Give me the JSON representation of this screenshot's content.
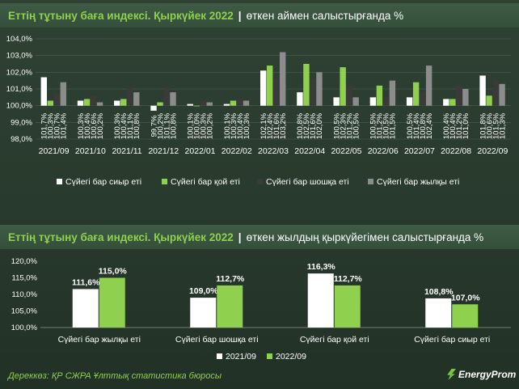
{
  "chart1": {
    "title_a": "Еттің тұтыну баға индексі. Қыркүйек 2022",
    "separator": "|",
    "title_b": "өткен аймен салыстырғанда %"
  },
  "chart2": {
    "title_a": "Еттің тұтыну баға индексі. Қыркүйек 2022",
    "separator": "|",
    "title_b": "өткен жылдың қыркүйегімен салыстырғанда %"
  },
  "source": "Дереккөз: ҚР СЖРА Ұлттық статистика бюросы",
  "logo_text": "EnergyProm",
  "colors": {
    "beef": "#ffffff",
    "lamb": "#8fd14f",
    "pork": "#3a3a3a",
    "horse": "#8c8c8c",
    "y2021": "#ffffff",
    "y2022": "#8fd14f"
  },
  "chart_data": [
    {
      "type": "bar",
      "categories": [
        "2021/09",
        "2021/10",
        "2021/11",
        "2021/12",
        "2022/01",
        "2022/02",
        "2022/03",
        "2022/04",
        "2022/05",
        "2022/06",
        "2022/07",
        "2022/08",
        "2022/09"
      ],
      "ylim": [
        98,
        104
      ],
      "yticks": [
        "98,0%",
        "99,0%",
        "100,0%",
        "101,0%",
        "102,0%",
        "103,0%",
        "104,0%"
      ],
      "legend_position": "bottom",
      "series": [
        {
          "name": "Сүйегі бар сиыр еті",
          "values": [
            101.7,
            100.3,
            100.3,
            99.7,
            100.1,
            100.1,
            102.1,
            100.8,
            100.5,
            100.5,
            100.5,
            100.4,
            101.8
          ],
          "labels": [
            "101,7%",
            "100,3%",
            "100,3%",
            "99,7%",
            "100,1%",
            "100,1%",
            "102,1%",
            "100,8%",
            "100,5%",
            "100,5%",
            "100,5%",
            "100,4%",
            "101,8%"
          ]
        },
        {
          "name": "Сүйегі бар қой еті",
          "values": [
            100.3,
            100.4,
            100.4,
            100.2,
            100.0,
            100.3,
            102.4,
            102.5,
            102.3,
            101.2,
            101.4,
            100.4,
            100.6
          ],
          "labels": [
            "100,3%",
            "100,4%",
            "100,4%",
            "100,2%",
            "100,0%",
            "100,3%",
            "102,4%",
            "102,5%",
            "102,3%",
            "101,2%",
            "101,4%",
            "100,4%",
            "100,6%"
          ]
        },
        {
          "name": "Сүйегі бар шошқа еті",
          "values": [
            100.7,
            100.6,
            101.1,
            101.1,
            100.3,
            100.4,
            101.6,
            101.6,
            101.2,
            100.5,
            100.8,
            101.2,
            101.5
          ],
          "labels": [
            "100,7%",
            "100,6%",
            "101,1%",
            "101,1%",
            "100,3%",
            "100,4%",
            "101,6%",
            "101,6%",
            "101,2%",
            "100,5%",
            "100,8%",
            "101,2%",
            "101,5%"
          ]
        },
        {
          "name": "Сүйегі бар жылқы еті",
          "values": [
            101.4,
            100.2,
            100.8,
            100.8,
            100.2,
            100.3,
            103.2,
            102.0,
            100.5,
            101.5,
            102.4,
            101.0,
            101.3
          ],
          "labels": [
            "101,4%",
            "100,2%",
            "100,8%",
            "100,8%",
            "100,2%",
            "100,3%",
            "103,2%",
            "102,0%",
            "100,5%",
            "101,5%",
            "102,4%",
            "101,0%",
            "101,3%"
          ]
        }
      ]
    },
    {
      "type": "bar",
      "categories": [
        "Сүйегі бар жылқы еті",
        "Сүйегі бар шошқа еті",
        "Сүйегі бар қой еті",
        "Сүйегі бар сиыр еті"
      ],
      "ylim": [
        100,
        120
      ],
      "yticks": [
        "100,0%",
        "105,0%",
        "110,0%",
        "115,0%",
        "120,0%"
      ],
      "legend_position": "bottom",
      "series": [
        {
          "name": "2021/09",
          "values": [
            111.6,
            109.0,
            116.3,
            108.8
          ],
          "labels": [
            "111,6%",
            "109,0%",
            "116,3%",
            "108,8%"
          ]
        },
        {
          "name": "2022/09",
          "values": [
            115.0,
            112.7,
            112.7,
            107.0
          ],
          "labels": [
            "115,0%",
            "112,7%",
            "112,7%",
            "107,0%"
          ]
        }
      ]
    }
  ]
}
